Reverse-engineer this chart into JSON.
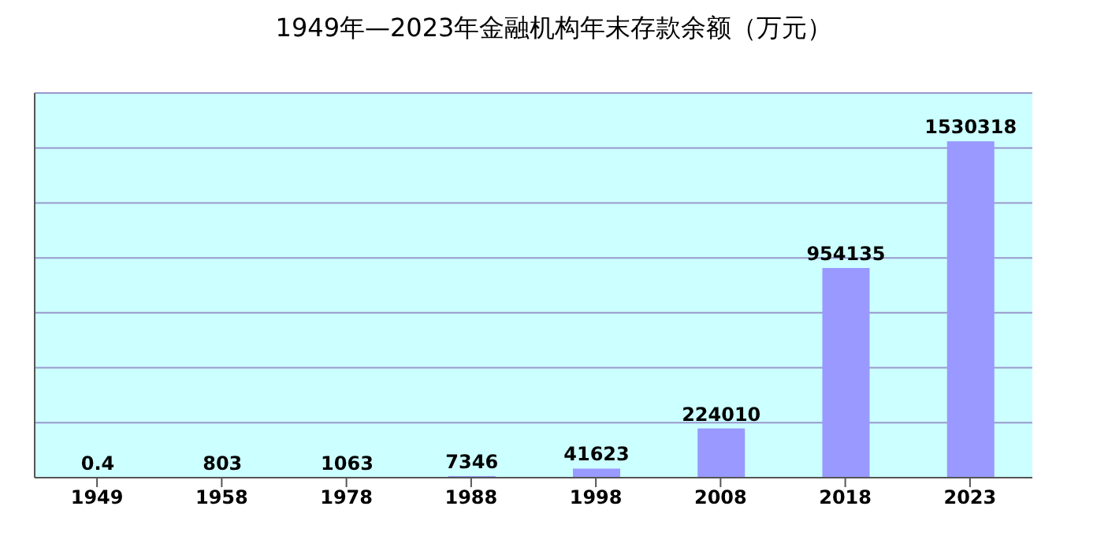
{
  "chart_data": {
    "type": "bar",
    "title": "1949年—2023年金融机构年末存款余额（万元）",
    "categories": [
      "1949",
      "1958",
      "1978",
      "1988",
      "1998",
      "2008",
      "2018",
      "2023"
    ],
    "values": [
      0.4,
      803,
      1063,
      7346,
      41623,
      224010,
      954135,
      1530318
    ],
    "color": "#9999ff",
    "data_labels": true,
    "grid": "y",
    "ylim": [
      0,
      1750000
    ],
    "yticks": [
      {
        "value": 0,
        "label": null
      },
      {
        "value": 250000,
        "label": null
      },
      {
        "value": 500000,
        "label": null
      },
      {
        "value": 750000,
        "label": null
      },
      {
        "value": 1000000,
        "label": null
      },
      {
        "value": 1250000,
        "label": null
      },
      {
        "value": 1500000,
        "label": null
      },
      {
        "value": 1750000,
        "label": null
      }
    ],
    "tick_labels": "x",
    "legend": false
  }
}
